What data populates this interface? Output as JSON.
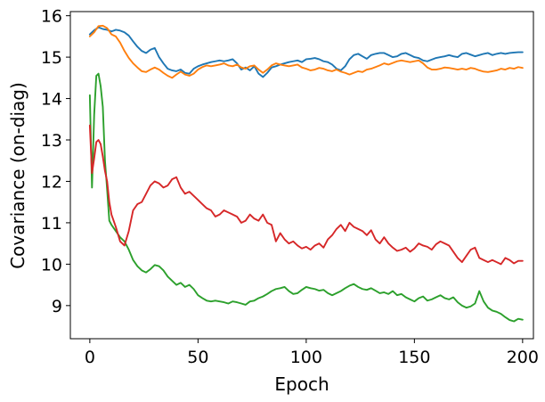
{
  "chart_data": {
    "type": "line",
    "title": "",
    "xlabel": "Epoch",
    "ylabel": "Covariance (on-diag)",
    "xlim": [
      -9,
      205
    ],
    "ylim": [
      8.2,
      16.1
    ],
    "xticks": [
      0,
      50,
      100,
      150,
      200
    ],
    "yticks": [
      9,
      10,
      11,
      12,
      13,
      14,
      15,
      16
    ],
    "grid": false,
    "legend": "none",
    "series": [
      {
        "color": "#1f77b4",
        "x": [
          0,
          2,
          4,
          6,
          8,
          10,
          12,
          14,
          16,
          18,
          20,
          22,
          24,
          26,
          28,
          30,
          32,
          34,
          36,
          38,
          40,
          42,
          44,
          46,
          48,
          50,
          52,
          54,
          56,
          58,
          60,
          62,
          64,
          66,
          68,
          70,
          72,
          74,
          76,
          78,
          80,
          82,
          84,
          86,
          88,
          90,
          92,
          94,
          96,
          98,
          100,
          102,
          104,
          106,
          108,
          110,
          112,
          114,
          116,
          118,
          120,
          122,
          124,
          126,
          128,
          130,
          132,
          134,
          136,
          138,
          140,
          142,
          144,
          146,
          148,
          150,
          152,
          154,
          156,
          158,
          160,
          162,
          164,
          166,
          168,
          170,
          172,
          174,
          176,
          178,
          180,
          182,
          184,
          186,
          188,
          190,
          192,
          194,
          196,
          198,
          200
        ],
        "y": [
          15.55,
          15.65,
          15.72,
          15.68,
          15.66,
          15.62,
          15.66,
          15.64,
          15.6,
          15.52,
          15.38,
          15.25,
          15.15,
          15.1,
          15.18,
          15.22,
          15.0,
          14.85,
          14.72,
          14.68,
          14.66,
          14.7,
          14.62,
          14.6,
          14.72,
          14.78,
          14.82,
          14.85,
          14.88,
          14.9,
          14.92,
          14.9,
          14.92,
          14.95,
          14.85,
          14.7,
          14.75,
          14.68,
          14.78,
          14.6,
          14.52,
          14.62,
          14.75,
          14.78,
          14.82,
          14.85,
          14.88,
          14.9,
          14.92,
          14.88,
          14.95,
          14.96,
          14.98,
          14.95,
          14.9,
          14.88,
          14.82,
          14.72,
          14.68,
          14.78,
          14.95,
          15.05,
          15.08,
          15.02,
          14.96,
          15.05,
          15.08,
          15.1,
          15.1,
          15.05,
          15.0,
          15.02,
          15.08,
          15.1,
          15.05,
          15.0,
          14.98,
          14.92,
          14.9,
          14.94,
          14.98,
          15.0,
          15.02,
          15.05,
          15.02,
          15.0,
          15.08,
          15.1,
          15.06,
          15.02,
          15.05,
          15.08,
          15.1,
          15.05,
          15.08,
          15.1,
          15.08,
          15.1,
          15.11,
          15.12,
          15.12
        ]
      },
      {
        "color": "#ff7f0e",
        "x": [
          0,
          2,
          4,
          6,
          8,
          10,
          12,
          14,
          16,
          18,
          20,
          22,
          24,
          26,
          28,
          30,
          32,
          34,
          36,
          38,
          40,
          42,
          44,
          46,
          48,
          50,
          52,
          54,
          56,
          58,
          60,
          62,
          64,
          66,
          68,
          70,
          72,
          74,
          76,
          78,
          80,
          82,
          84,
          86,
          88,
          90,
          92,
          94,
          96,
          98,
          100,
          102,
          104,
          106,
          108,
          110,
          112,
          114,
          116,
          118,
          120,
          122,
          124,
          126,
          128,
          130,
          132,
          134,
          136,
          138,
          140,
          142,
          144,
          146,
          148,
          150,
          152,
          154,
          156,
          158,
          160,
          162,
          164,
          166,
          168,
          170,
          172,
          174,
          176,
          178,
          180,
          182,
          184,
          186,
          188,
          190,
          192,
          194,
          196,
          198,
          200
        ],
        "y": [
          15.5,
          15.6,
          15.75,
          15.76,
          15.7,
          15.55,
          15.5,
          15.35,
          15.15,
          14.98,
          14.85,
          14.75,
          14.66,
          14.64,
          14.7,
          14.75,
          14.7,
          14.62,
          14.55,
          14.5,
          14.58,
          14.65,
          14.58,
          14.55,
          14.6,
          14.7,
          14.76,
          14.8,
          14.78,
          14.8,
          14.82,
          14.85,
          14.8,
          14.78,
          14.82,
          14.75,
          14.72,
          14.78,
          14.8,
          14.7,
          14.62,
          14.7,
          14.8,
          14.85,
          14.82,
          14.8,
          14.78,
          14.8,
          14.82,
          14.75,
          14.72,
          14.68,
          14.7,
          14.74,
          14.72,
          14.68,
          14.66,
          14.7,
          14.65,
          14.62,
          14.58,
          14.62,
          14.66,
          14.64,
          14.7,
          14.72,
          14.76,
          14.8,
          14.85,
          14.82,
          14.86,
          14.9,
          14.92,
          14.9,
          14.88,
          14.9,
          14.92,
          14.85,
          14.75,
          14.7,
          14.7,
          14.72,
          14.75,
          14.74,
          14.72,
          14.7,
          14.72,
          14.7,
          14.74,
          14.72,
          14.68,
          14.65,
          14.64,
          14.66,
          14.68,
          14.72,
          14.7,
          14.74,
          14.72,
          14.76,
          14.74
        ]
      },
      {
        "color": "#2ca02c",
        "x": [
          0,
          1,
          2,
          3,
          4,
          5,
          6,
          7,
          8,
          9,
          10,
          12,
          14,
          16,
          18,
          20,
          22,
          24,
          26,
          28,
          30,
          32,
          34,
          36,
          38,
          40,
          42,
          44,
          46,
          48,
          50,
          52,
          54,
          56,
          58,
          60,
          62,
          64,
          66,
          68,
          70,
          72,
          74,
          76,
          78,
          80,
          82,
          84,
          86,
          88,
          90,
          92,
          94,
          96,
          98,
          100,
          102,
          104,
          106,
          108,
          110,
          112,
          114,
          116,
          118,
          120,
          122,
          124,
          126,
          128,
          130,
          132,
          134,
          136,
          138,
          140,
          142,
          144,
          146,
          148,
          150,
          152,
          154,
          156,
          158,
          160,
          162,
          164,
          166,
          168,
          170,
          172,
          174,
          176,
          178,
          180,
          182,
          184,
          186,
          188,
          190,
          192,
          194,
          196,
          198,
          200
        ],
        "y": [
          14.08,
          11.85,
          13.6,
          14.55,
          14.6,
          14.3,
          13.8,
          12.5,
          11.8,
          11.05,
          10.95,
          10.8,
          10.65,
          10.55,
          10.35,
          10.1,
          9.95,
          9.85,
          9.8,
          9.88,
          9.98,
          9.95,
          9.85,
          9.7,
          9.6,
          9.5,
          9.55,
          9.45,
          9.5,
          9.4,
          9.25,
          9.18,
          9.12,
          9.1,
          9.12,
          9.1,
          9.08,
          9.05,
          9.1,
          9.08,
          9.05,
          9.02,
          9.1,
          9.12,
          9.18,
          9.22,
          9.28,
          9.35,
          9.4,
          9.42,
          9.45,
          9.35,
          9.28,
          9.3,
          9.38,
          9.45,
          9.42,
          9.4,
          9.36,
          9.38,
          9.3,
          9.25,
          9.3,
          9.35,
          9.42,
          9.48,
          9.52,
          9.45,
          9.4,
          9.38,
          9.42,
          9.36,
          9.3,
          9.32,
          9.28,
          9.35,
          9.25,
          9.28,
          9.2,
          9.15,
          9.1,
          9.18,
          9.22,
          9.12,
          9.15,
          9.2,
          9.25,
          9.18,
          9.15,
          9.2,
          9.08,
          9.0,
          8.95,
          8.98,
          9.05,
          9.35,
          9.1,
          8.95,
          8.88,
          8.85,
          8.8,
          8.72,
          8.65,
          8.62,
          8.68,
          8.66
        ]
      },
      {
        "color": "#d62728",
        "x": [
          0,
          1,
          2,
          3,
          4,
          5,
          6,
          7,
          8,
          9,
          10,
          12,
          14,
          16,
          18,
          20,
          22,
          24,
          26,
          28,
          30,
          32,
          34,
          36,
          38,
          40,
          42,
          44,
          46,
          48,
          50,
          52,
          54,
          56,
          58,
          60,
          62,
          64,
          66,
          68,
          70,
          72,
          74,
          76,
          78,
          80,
          82,
          84,
          86,
          88,
          90,
          92,
          94,
          96,
          98,
          100,
          102,
          104,
          106,
          108,
          110,
          112,
          114,
          116,
          118,
          120,
          122,
          124,
          126,
          128,
          130,
          132,
          134,
          136,
          138,
          140,
          142,
          144,
          146,
          148,
          150,
          152,
          154,
          156,
          158,
          160,
          162,
          164,
          166,
          168,
          170,
          172,
          174,
          176,
          178,
          180,
          182,
          184,
          186,
          188,
          190,
          192,
          194,
          196,
          198,
          200
        ],
        "y": [
          13.35,
          12.2,
          12.55,
          12.95,
          13.0,
          12.9,
          12.6,
          12.25,
          12.0,
          11.5,
          11.2,
          10.9,
          10.55,
          10.45,
          10.8,
          11.3,
          11.45,
          11.5,
          11.7,
          11.9,
          12.0,
          11.95,
          11.85,
          11.9,
          12.05,
          12.1,
          11.85,
          11.7,
          11.75,
          11.65,
          11.55,
          11.45,
          11.35,
          11.3,
          11.15,
          11.2,
          11.3,
          11.25,
          11.2,
          11.15,
          11.0,
          11.05,
          11.2,
          11.1,
          11.05,
          11.2,
          11.0,
          10.95,
          10.55,
          10.75,
          10.6,
          10.5,
          10.55,
          10.45,
          10.38,
          10.42,
          10.35,
          10.45,
          10.5,
          10.4,
          10.6,
          10.7,
          10.85,
          10.95,
          10.8,
          11.0,
          10.9,
          10.85,
          10.8,
          10.7,
          10.82,
          10.6,
          10.5,
          10.65,
          10.5,
          10.4,
          10.32,
          10.35,
          10.4,
          10.3,
          10.38,
          10.5,
          10.45,
          10.42,
          10.35,
          10.48,
          10.55,
          10.5,
          10.45,
          10.3,
          10.15,
          10.05,
          10.2,
          10.35,
          10.4,
          10.15,
          10.1,
          10.05,
          10.1,
          10.05,
          10.0,
          10.15,
          10.1,
          10.02,
          10.08,
          10.08
        ]
      }
    ]
  }
}
